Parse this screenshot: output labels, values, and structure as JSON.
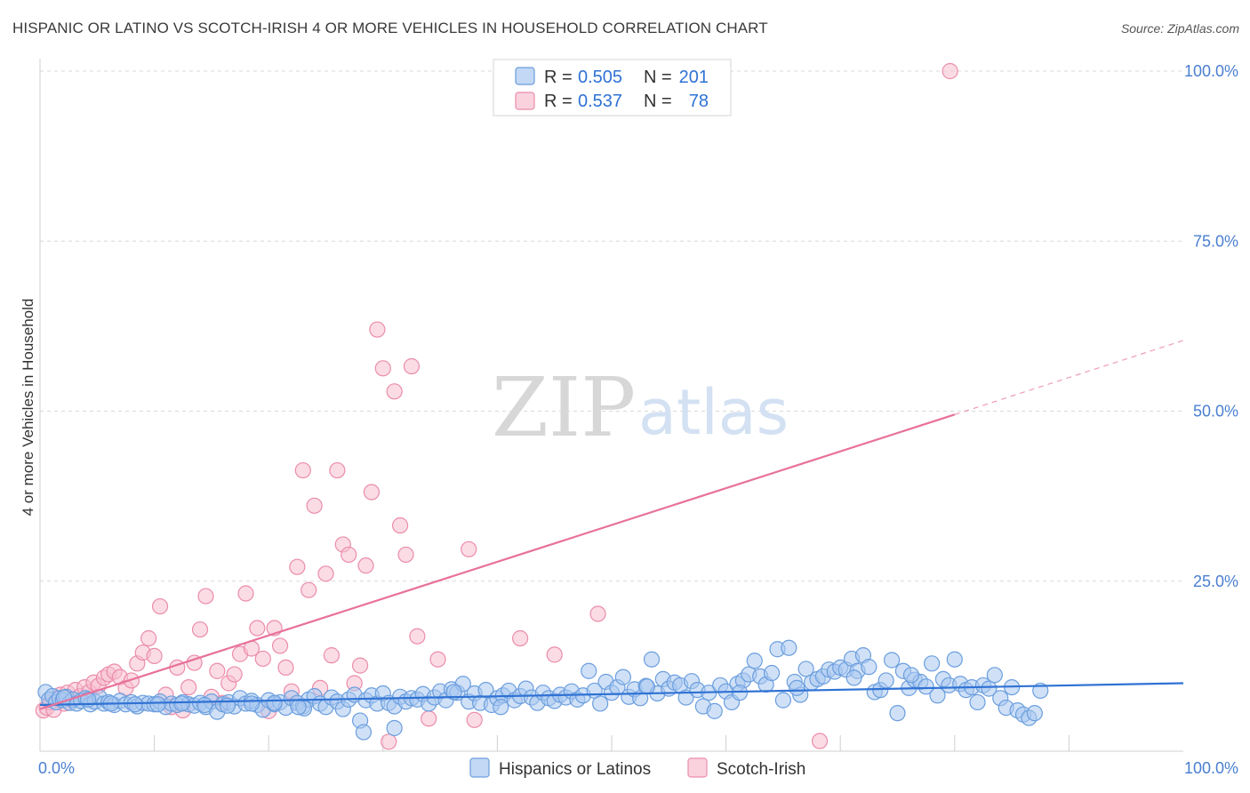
{
  "title": "HISPANIC OR LATINO VS SCOTCH-IRISH 4 OR MORE VEHICLES IN HOUSEHOLD CORRELATION CHART",
  "source": "Source: ZipAtlas.com",
  "watermark": {
    "zip": "ZIP",
    "atlas": "atlas"
  },
  "colors": {
    "blue_fill": "#a9c8f0",
    "blue_stroke": "#6b9ede",
    "blue_line": "#2f72d4",
    "pink_fill": "#f8bfd0",
    "pink_stroke": "#eb8caa",
    "pink_line": "#e8719a",
    "grid": "#d9d9d9",
    "tick_text": "#4a7fd0"
  },
  "legend": {
    "r_label": "R =",
    "n_label": "N =",
    "rows": [
      {
        "series": "blue",
        "r": "0.505",
        "n": "201"
      },
      {
        "series": "pink",
        "r": "0.537",
        "n": "78"
      }
    ]
  },
  "chart_data": {
    "type": "scatter",
    "title": "HISPANIC OR LATINO VS SCOTCH-IRISH 4 OR MORE VEHICLES IN HOUSEHOLD CORRELATION CHART",
    "xlabel": "",
    "ylabel": "4 or more Vehicles in Household",
    "xlim": [
      0,
      100
    ],
    "ylim": [
      0,
      104
    ],
    "x_tick_labels": [
      "0.0%",
      "100.0%"
    ],
    "y_ticks": [
      25,
      50,
      75,
      100
    ],
    "y_tick_labels": [
      "25.0%",
      "50.0%",
      "75.0%",
      "100.0%"
    ],
    "series": [
      {
        "name": "Hispanics or Latinos",
        "color": "blue",
        "trend": {
          "x0": 0,
          "y0": 6.8,
          "x1": 100,
          "y1": 10.0
        },
        "points": [
          [
            0.5,
            8.7
          ],
          [
            0.8,
            7.6
          ],
          [
            1.1,
            8.1
          ],
          [
            1.4,
            7.2
          ],
          [
            1.7,
            7.8
          ],
          [
            2.0,
            7.5
          ],
          [
            2.3,
            8.0
          ],
          [
            2.6,
            7.1
          ],
          [
            2.9,
            7.6
          ],
          [
            3.2,
            7.0
          ],
          [
            3.6,
            7.4
          ],
          [
            4.0,
            7.8
          ],
          [
            4.4,
            6.9
          ],
          [
            4.8,
            7.3
          ],
          [
            5.2,
            7.9
          ],
          [
            5.6,
            7.0
          ],
          [
            6.0,
            7.2
          ],
          [
            6.5,
            6.8
          ],
          [
            7.0,
            7.4
          ],
          [
            7.5,
            6.9
          ],
          [
            8.0,
            7.2
          ],
          [
            8.5,
            6.6
          ],
          [
            9.0,
            7.1
          ],
          [
            9.5,
            7.0
          ],
          [
            10.0,
            6.9
          ],
          [
            10.5,
            7.3
          ],
          [
            11.0,
            6.5
          ],
          [
            11.5,
            7.0
          ],
          [
            12.0,
            6.8
          ],
          [
            12.5,
            7.2
          ],
          [
            13.0,
            6.9
          ],
          [
            13.5,
            6.7
          ],
          [
            14.0,
            7.1
          ],
          [
            14.5,
            6.5
          ],
          [
            15.0,
            7.3
          ],
          [
            15.5,
            5.8
          ],
          [
            16.0,
            6.9
          ],
          [
            16.5,
            7.2
          ],
          [
            17.0,
            6.6
          ],
          [
            17.5,
            7.8
          ],
          [
            18.0,
            7.0
          ],
          [
            18.5,
            7.4
          ],
          [
            19.0,
            6.8
          ],
          [
            19.5,
            6.1
          ],
          [
            20.0,
            7.5
          ],
          [
            20.5,
            6.9
          ],
          [
            21.0,
            7.2
          ],
          [
            21.5,
            6.4
          ],
          [
            22.0,
            7.8
          ],
          [
            22.5,
            7.1
          ],
          [
            23.0,
            6.6
          ],
          [
            23.5,
            7.6
          ],
          [
            24.0,
            8.1
          ],
          [
            24.5,
            7.0
          ],
          [
            25.0,
            6.5
          ],
          [
            25.5,
            7.9
          ],
          [
            26.0,
            7.3
          ],
          [
            26.5,
            6.2
          ],
          [
            27.0,
            7.6
          ],
          [
            27.5,
            8.3
          ],
          [
            28.0,
            4.5
          ],
          [
            28.5,
            7.5
          ],
          [
            29.0,
            8.2
          ],
          [
            29.5,
            7.0
          ],
          [
            30.0,
            8.5
          ],
          [
            30.5,
            7.1
          ],
          [
            31.0,
            6.6
          ],
          [
            31.5,
            8.0
          ],
          [
            32.0,
            7.3
          ],
          [
            32.5,
            7.8
          ],
          [
            33.0,
            7.6
          ],
          [
            33.5,
            8.4
          ],
          [
            34.0,
            7.0
          ],
          [
            34.5,
            7.9
          ],
          [
            35.0,
            8.8
          ],
          [
            35.5,
            7.5
          ],
          [
            36.0,
            9.1
          ],
          [
            36.5,
            8.6
          ],
          [
            37.0,
            9.9
          ],
          [
            37.5,
            7.3
          ],
          [
            38.0,
            8.5
          ],
          [
            38.5,
            7.1
          ],
          [
            39.0,
            9.0
          ],
          [
            39.5,
            6.8
          ],
          [
            40.0,
            7.8
          ],
          [
            40.5,
            8.2
          ],
          [
            41.0,
            8.9
          ],
          [
            41.5,
            7.5
          ],
          [
            42.0,
            8.1
          ],
          [
            42.5,
            9.2
          ],
          [
            43.0,
            7.9
          ],
          [
            43.5,
            7.1
          ],
          [
            44.0,
            8.6
          ],
          [
            44.5,
            7.8
          ],
          [
            45.0,
            7.4
          ],
          [
            45.5,
            8.3
          ],
          [
            46.0,
            7.9
          ],
          [
            46.5,
            8.8
          ],
          [
            47.0,
            7.6
          ],
          [
            47.5,
            8.2
          ],
          [
            48.0,
            11.8
          ],
          [
            48.5,
            8.9
          ],
          [
            49.0,
            7.0
          ],
          [
            49.5,
            10.2
          ],
          [
            50.0,
            8.6
          ],
          [
            50.5,
            9.4
          ],
          [
            51.0,
            10.9
          ],
          [
            51.5,
            8.0
          ],
          [
            52.0,
            9.1
          ],
          [
            52.5,
            7.8
          ],
          [
            53.0,
            9.6
          ],
          [
            53.5,
            13.5
          ],
          [
            54.0,
            8.5
          ],
          [
            54.5,
            10.6
          ],
          [
            55.0,
            9.2
          ],
          [
            55.5,
            10.1
          ],
          [
            56.0,
            9.7
          ],
          [
            56.5,
            7.9
          ],
          [
            57.0,
            10.3
          ],
          [
            57.5,
            9.0
          ],
          [
            58.0,
            6.6
          ],
          [
            58.5,
            8.6
          ],
          [
            59.0,
            5.9
          ],
          [
            59.5,
            9.7
          ],
          [
            60.0,
            8.8
          ],
          [
            60.5,
            7.2
          ],
          [
            61.0,
            9.9
          ],
          [
            61.5,
            10.4
          ],
          [
            62.0,
            11.3
          ],
          [
            62.5,
            13.3
          ],
          [
            63.0,
            11.0
          ],
          [
            63.5,
            9.8
          ],
          [
            64.0,
            11.5
          ],
          [
            64.5,
            15.0
          ],
          [
            65.0,
            7.5
          ],
          [
            65.5,
            15.2
          ],
          [
            66.0,
            10.2
          ],
          [
            66.5,
            8.3
          ],
          [
            67.0,
            12.1
          ],
          [
            67.5,
            10.1
          ],
          [
            68.0,
            10.6
          ],
          [
            68.5,
            11.0
          ],
          [
            69.0,
            12.0
          ],
          [
            69.5,
            11.7
          ],
          [
            70.0,
            12.3
          ],
          [
            70.5,
            12.0
          ],
          [
            71.0,
            13.6
          ],
          [
            71.5,
            11.8
          ],
          [
            72.0,
            14.1
          ],
          [
            72.5,
            12.4
          ],
          [
            73.0,
            8.7
          ],
          [
            73.5,
            9.0
          ],
          [
            74.0,
            10.4
          ],
          [
            74.5,
            13.4
          ],
          [
            75.0,
            5.6
          ],
          [
            75.5,
            11.8
          ],
          [
            76.0,
            9.3
          ],
          [
            76.5,
            10.5
          ],
          [
            77.0,
            10.2
          ],
          [
            77.5,
            9.5
          ],
          [
            78.0,
            12.9
          ],
          [
            78.5,
            8.2
          ],
          [
            79.0,
            10.6
          ],
          [
            79.5,
            9.7
          ],
          [
            80.0,
            13.5
          ],
          [
            80.5,
            9.9
          ],
          [
            81.0,
            9.0
          ],
          [
            81.5,
            9.4
          ],
          [
            82.0,
            7.2
          ],
          [
            82.5,
            9.7
          ],
          [
            83.0,
            9.2
          ],
          [
            83.5,
            11.2
          ],
          [
            84.0,
            7.8
          ],
          [
            84.5,
            6.4
          ],
          [
            85.0,
            9.4
          ],
          [
            85.5,
            6.0
          ],
          [
            86.0,
            5.4
          ],
          [
            86.5,
            4.9
          ],
          [
            87.0,
            5.6
          ],
          [
            87.5,
            8.9
          ],
          [
            31.0,
            3.4
          ],
          [
            28.3,
            2.8
          ],
          [
            40.3,
            6.5
          ],
          [
            23.1,
            6.3
          ],
          [
            36.2,
            8.7
          ],
          [
            53.1,
            9.5
          ],
          [
            61.2,
            8.6
          ],
          [
            66.2,
            9.3
          ],
          [
            71.2,
            10.8
          ],
          [
            76.2,
            11.2
          ],
          [
            2.1,
            7.9
          ],
          [
            4.2,
            7.6
          ],
          [
            6.2,
            7.0
          ],
          [
            8.3,
            6.9
          ],
          [
            10.3,
            6.9
          ],
          [
            12.4,
            7.0
          ],
          [
            14.4,
            6.8
          ],
          [
            16.4,
            6.7
          ],
          [
            18.5,
            7.0
          ],
          [
            20.5,
            7.1
          ],
          [
            22.6,
            6.5
          ]
        ]
      },
      {
        "name": "Scotch-Irish",
        "color": "pink",
        "trend": {
          "x0": 0,
          "y0": 6.2,
          "x1": 80,
          "y1": 49.5,
          "dash_to_x": 100,
          "dash_to_y": 60.4
        },
        "points": [
          [
            0.3,
            6.0
          ],
          [
            0.6,
            6.4
          ],
          [
            0.9,
            7.2
          ],
          [
            1.2,
            6.1
          ],
          [
            1.5,
            7.8
          ],
          [
            1.8,
            8.3
          ],
          [
            2.1,
            7.0
          ],
          [
            2.4,
            8.6
          ],
          [
            2.8,
            7.5
          ],
          [
            3.1,
            9.0
          ],
          [
            3.5,
            8.1
          ],
          [
            3.9,
            9.4
          ],
          [
            4.3,
            8.7
          ],
          [
            4.7,
            10.1
          ],
          [
            5.1,
            9.6
          ],
          [
            5.6,
            10.8
          ],
          [
            6.0,
            11.3
          ],
          [
            6.5,
            11.7
          ],
          [
            7.0,
            10.9
          ],
          [
            7.5,
            9.3
          ],
          [
            8.0,
            10.4
          ],
          [
            8.5,
            12.9
          ],
          [
            9.0,
            14.5
          ],
          [
            9.5,
            16.6
          ],
          [
            10.0,
            14.0
          ],
          [
            10.5,
            21.3
          ],
          [
            11.0,
            8.3
          ],
          [
            11.5,
            6.5
          ],
          [
            12.0,
            12.3
          ],
          [
            12.5,
            6.0
          ],
          [
            13.0,
            9.4
          ],
          [
            13.5,
            13.0
          ],
          [
            14.0,
            17.9
          ],
          [
            14.5,
            22.8
          ],
          [
            15.0,
            8.0
          ],
          [
            15.5,
            11.8
          ],
          [
            16.0,
            7.1
          ],
          [
            16.5,
            10.0
          ],
          [
            17.0,
            11.3
          ],
          [
            17.5,
            14.3
          ],
          [
            18.0,
            23.2
          ],
          [
            18.5,
            15.1
          ],
          [
            19.0,
            18.1
          ],
          [
            19.5,
            13.6
          ],
          [
            20.0,
            5.9
          ],
          [
            20.5,
            18.1
          ],
          [
            21.0,
            15.5
          ],
          [
            21.5,
            12.3
          ],
          [
            22.0,
            8.8
          ],
          [
            22.5,
            27.1
          ],
          [
            23.0,
            41.3
          ],
          [
            23.5,
            23.7
          ],
          [
            24.0,
            36.1
          ],
          [
            24.5,
            9.3
          ],
          [
            25.0,
            26.1
          ],
          [
            25.5,
            14.1
          ],
          [
            26.0,
            41.3
          ],
          [
            26.5,
            30.4
          ],
          [
            27.0,
            28.9
          ],
          [
            27.5,
            10.0
          ],
          [
            28.0,
            12.6
          ],
          [
            28.5,
            27.3
          ],
          [
            29.0,
            38.1
          ],
          [
            29.5,
            62.0
          ],
          [
            30.0,
            56.3
          ],
          [
            30.5,
            1.4
          ],
          [
            31.0,
            52.9
          ],
          [
            31.5,
            33.2
          ],
          [
            32.0,
            28.9
          ],
          [
            32.5,
            56.6
          ],
          [
            33.0,
            16.9
          ],
          [
            34.0,
            4.8
          ],
          [
            34.8,
            13.5
          ],
          [
            37.5,
            29.7
          ],
          [
            38.0,
            4.6
          ],
          [
            42.0,
            16.6
          ],
          [
            45.0,
            14.2
          ],
          [
            48.8,
            20.2
          ],
          [
            68.2,
            1.5
          ],
          [
            79.6,
            100.0
          ]
        ]
      }
    ]
  },
  "bottom_legend": [
    {
      "series": "blue",
      "label": "Hispanics or Latinos"
    },
    {
      "series": "pink",
      "label": "Scotch-Irish"
    }
  ]
}
